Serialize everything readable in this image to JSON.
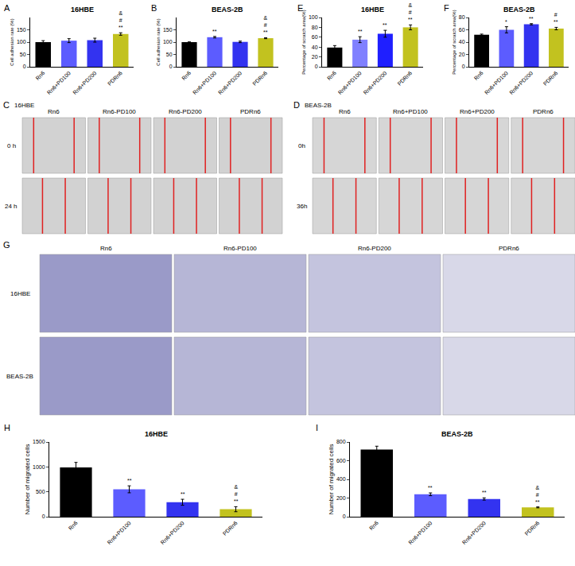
{
  "chart_data": [
    {
      "panel": "A",
      "type": "bar",
      "title": "16HBE",
      "y_label": "Cell adhesion rate (%)",
      "categories": [
        "Rn6",
        "Rn6+PD100",
        "Rn6+PD200",
        "PDRn6"
      ],
      "values": [
        100,
        106,
        108,
        133
      ],
      "errors": [
        6,
        8,
        8,
        5
      ],
      "significance": [
        [],
        [],
        [],
        [
          "&",
          "#",
          "**"
        ]
      ],
      "colors": [
        "#000000",
        "#5c5cff",
        "#3333f0",
        "#c2c21f"
      ],
      "ylim": [
        0,
        200
      ],
      "yticks": [
        0,
        50,
        100,
        150
      ]
    },
    {
      "panel": "B",
      "type": "bar",
      "title": "BEAS-2B",
      "y_label": "Cell adhesion rate (%)",
      "categories": [
        "Rn6",
        "Rn6+PD100",
        "Rn6+PD200",
        "PDRn6"
      ],
      "values": [
        100,
        120,
        101,
        116
      ],
      "errors": [
        1,
        3,
        3,
        2
      ],
      "significance": [
        [],
        [
          "**"
        ],
        [],
        [
          "&",
          "#",
          "**"
        ]
      ],
      "colors": [
        "#000000",
        "#5c5cff",
        "#3333f0",
        "#c2c21f"
      ],
      "ylim": [
        0,
        200
      ],
      "yticks": [
        0,
        50,
        100,
        150
      ]
    },
    {
      "panel": "E",
      "type": "bar",
      "title": "16HBE",
      "y_label": "Percentage of scratch area(%)",
      "categories": [
        "Rn6",
        "Rn6+PD100",
        "Rn6+PD200",
        "PDRn6"
      ],
      "values": [
        39,
        55,
        67,
        80
      ],
      "errors": [
        4,
        6,
        7,
        5
      ],
      "significance": [
        [],
        [
          "**"
        ],
        [
          "**"
        ],
        [
          "&",
          "#",
          "**"
        ]
      ],
      "colors": [
        "#000000",
        "#8080ff",
        "#1f1fff",
        "#c2c21f"
      ],
      "ylim": [
        0,
        100
      ],
      "yticks": [
        0,
        20,
        40,
        60,
        80,
        100
      ]
    },
    {
      "panel": "F",
      "type": "bar",
      "title": "BEAS-2B",
      "y_label": "Percentage of scratch area(%)",
      "categories": [
        "Rn6",
        "Rn6+PD100",
        "Rn6+PD200",
        "PDRn6"
      ],
      "values": [
        52,
        60,
        69,
        62
      ],
      "errors": [
        1,
        5,
        1,
        2
      ],
      "significance": [
        [],
        [
          "*"
        ],
        [
          "**"
        ],
        [
          "#",
          "**"
        ]
      ],
      "colors": [
        "#000000",
        "#5c5cff",
        "#3333f0",
        "#c2c21f"
      ],
      "ylim": [
        0,
        80
      ],
      "yticks": [
        0,
        20,
        40,
        60,
        80
      ]
    },
    {
      "panel": "H",
      "type": "bar",
      "title": "16HBE",
      "y_label": "Number of migrated cells",
      "categories": [
        "Rn6",
        "Rn6+PD100",
        "Rn6+PD200",
        "PDRn6"
      ],
      "values": [
        990,
        550,
        290,
        150
      ],
      "errors": [
        100,
        70,
        60,
        50
      ],
      "significance": [
        [],
        [
          "**"
        ],
        [
          "**"
        ],
        [
          "&",
          "#",
          "**"
        ]
      ],
      "colors": [
        "#000000",
        "#5c5cff",
        "#3333f0",
        "#c2c21f"
      ],
      "ylim": [
        0,
        1500
      ],
      "yticks": [
        0,
        500,
        1000,
        1500
      ]
    },
    {
      "panel": "I",
      "type": "bar",
      "title": "BEAS-2B",
      "y_label": "Number of migrated cells",
      "categories": [
        "Rn6",
        "Rn6+PD100",
        "Rn6+PD200",
        "PDRn6"
      ],
      "values": [
        720,
        240,
        190,
        100
      ],
      "errors": [
        35,
        15,
        12,
        5
      ],
      "significance": [
        [],
        [
          "**"
        ],
        [
          "**"
        ],
        [
          "&",
          "#",
          "**"
        ]
      ],
      "colors": [
        "#000000",
        "#5c5cff",
        "#3333f0",
        "#c2c21f"
      ],
      "ylim": [
        0,
        800
      ],
      "yticks": [
        0,
        200,
        400,
        600,
        800
      ]
    }
  ],
  "image_panels": [
    {
      "panel": "C",
      "title": "16HBE",
      "columns": [
        "Rn6",
        "Rn6-PD100",
        "Rn6-PD200",
        "PDRn6"
      ],
      "rows": [
        "0 h",
        "24 h"
      ]
    },
    {
      "panel": "D",
      "title": "BEAS-2B",
      "columns": [
        "Rn6",
        "Rn6+PD100",
        "Rn6+PD200",
        "PDRn6"
      ],
      "rows": [
        "0h",
        "36h"
      ]
    },
    {
      "panel": "G",
      "columns": [
        "Rn6",
        "Rn6-PD100",
        "Rn6-PD200",
        "PDRn6"
      ],
      "rows": [
        "16HBE",
        "BEAS-2B"
      ]
    }
  ]
}
